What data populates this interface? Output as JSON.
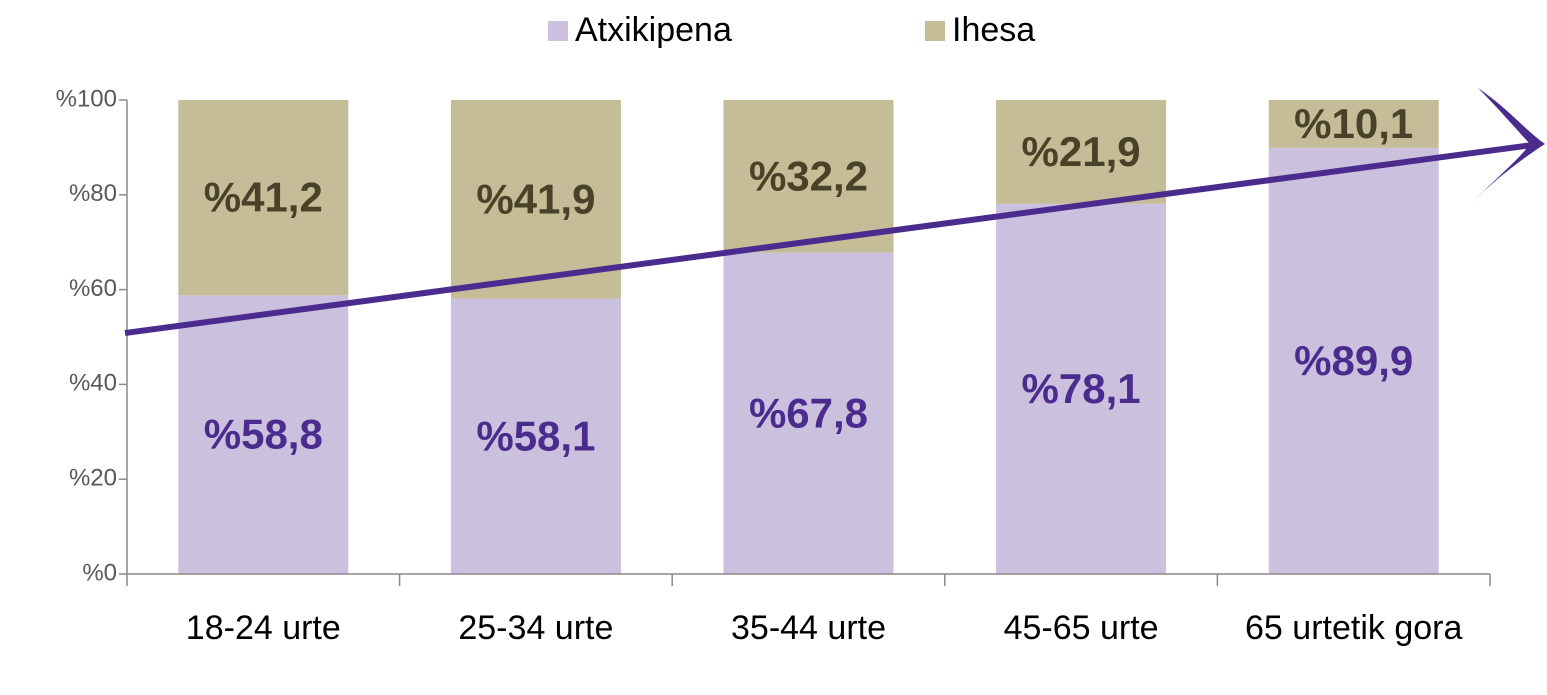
{
  "chart_data": {
    "type": "stacked_bar",
    "categories": [
      "18-24 urte",
      "25-34 urte",
      "35-44 urte",
      "45-65 urte",
      "65 urtetik gora"
    ],
    "series": [
      {
        "name": "Atxikipena",
        "color": "#cbc0dd",
        "label_color": "#4b2c8e",
        "values": [
          58.8,
          58.1,
          67.8,
          78.1,
          89.9
        ],
        "value_labels": [
          "%58,8",
          "%58,1",
          "%67,8",
          "%78,1",
          "%89,9"
        ]
      },
      {
        "name": "Ihesa",
        "color": "#c4bd97",
        "label_color": "#4a4228",
        "values": [
          41.2,
          41.9,
          32.2,
          21.9,
          10.1
        ],
        "value_labels": [
          "%41,2",
          "%41,9",
          "%32,2",
          "%21,9",
          "%10,1"
        ]
      }
    ],
    "ylim": [
      0,
      100
    ],
    "yticks": [
      {
        "value": 0,
        "label": "%0"
      },
      {
        "value": 20,
        "label": "%20"
      },
      {
        "value": 40,
        "label": "%40"
      },
      {
        "value": 60,
        "label": "%60"
      },
      {
        "value": 80,
        "label": "%80"
      },
      {
        "value": 100,
        "label": "%100"
      }
    ],
    "legend": "top"
  }
}
